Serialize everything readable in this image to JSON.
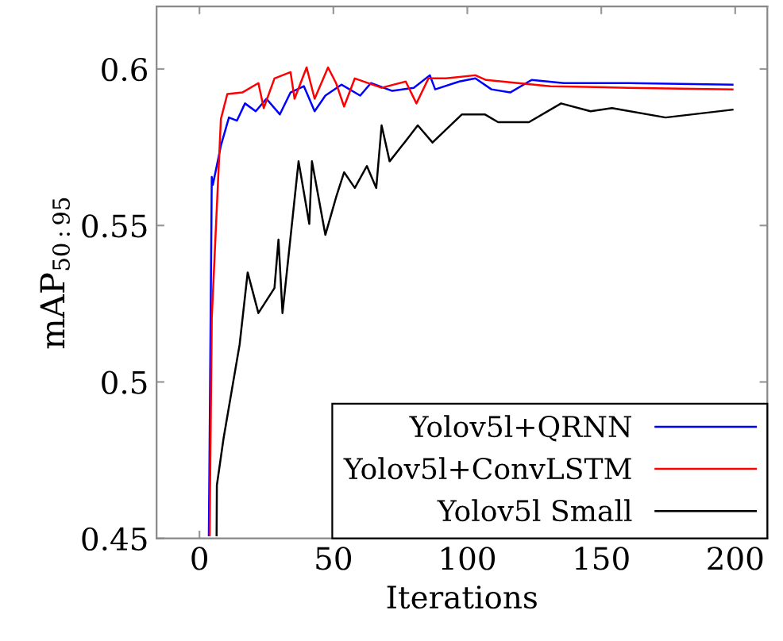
{
  "chart_data": {
    "type": "line",
    "xlabel": "Iterations",
    "ylabel": "mAP$_{50:95}$",
    "xlim": [
      -16,
      212
    ],
    "ylim": [
      0.45,
      0.62
    ],
    "xticks": [
      0,
      50,
      100,
      150,
      200
    ],
    "yticks": [
      0.45,
      0.5,
      0.55,
      0.6
    ],
    "grid": false,
    "legend": "bottom right",
    "marker": "none",
    "line_style": "solid",
    "series": [
      {
        "name": "Yolov5l+QRNN",
        "color": "#0000ff",
        "x": [
          3.5,
          4.6,
          5,
          8,
          11,
          14,
          17,
          21,
          25,
          30,
          34,
          39,
          43,
          47,
          53,
          60,
          64,
          72,
          80,
          86,
          88,
          97,
          103,
          109,
          116,
          124,
          136,
          160,
          199
        ],
        "values": [
          0.451,
          0.5655,
          0.563,
          0.5755,
          0.5845,
          0.5835,
          0.589,
          0.5865,
          0.5905,
          0.5855,
          0.5925,
          0.5945,
          0.5865,
          0.5915,
          0.595,
          0.5915,
          0.5955,
          0.593,
          0.594,
          0.598,
          0.5935,
          0.596,
          0.597,
          0.5935,
          0.5925,
          0.5965,
          0.5955,
          0.5955,
          0.595
        ]
      },
      {
        "name": "Yolov5l+ConvLSTM",
        "color": "#ff0000",
        "x": [
          3.8,
          4.6,
          8,
          10.4,
          16,
          22,
          24,
          28,
          34,
          35.5,
          40,
          43,
          48,
          51,
          54,
          58,
          68,
          77,
          81,
          85.5,
          92,
          103,
          107,
          131,
          160,
          199
        ],
        "values": [
          0.451,
          0.5205,
          0.584,
          0.592,
          0.5925,
          0.5955,
          0.5875,
          0.597,
          0.599,
          0.5905,
          0.6005,
          0.5905,
          0.6005,
          0.5955,
          0.588,
          0.597,
          0.594,
          0.596,
          0.589,
          0.597,
          0.597,
          0.598,
          0.5965,
          0.5945,
          0.594,
          0.5935
        ]
      },
      {
        "name": "Yolov5l Small",
        "color": "#000000",
        "x": [
          6.4,
          6.5,
          9,
          11,
          15,
          18,
          22,
          28,
          29.5,
          31,
          37,
          41,
          42,
          47,
          51,
          54,
          58,
          62.5,
          66,
          68,
          71,
          77,
          81.5,
          87,
          98,
          102,
          106.5,
          111.5,
          123,
          135,
          146,
          154,
          174,
          199
        ],
        "values": [
          0.451,
          0.467,
          0.482,
          0.492,
          0.512,
          0.535,
          0.522,
          0.53,
          0.5455,
          0.522,
          0.5705,
          0.5505,
          0.5705,
          0.547,
          0.559,
          0.567,
          0.562,
          0.569,
          0.562,
          0.582,
          0.5705,
          0.577,
          0.582,
          0.5765,
          0.5855,
          0.5855,
          0.5855,
          0.583,
          0.583,
          0.589,
          0.5865,
          0.5875,
          0.5845,
          0.587
        ]
      }
    ]
  }
}
